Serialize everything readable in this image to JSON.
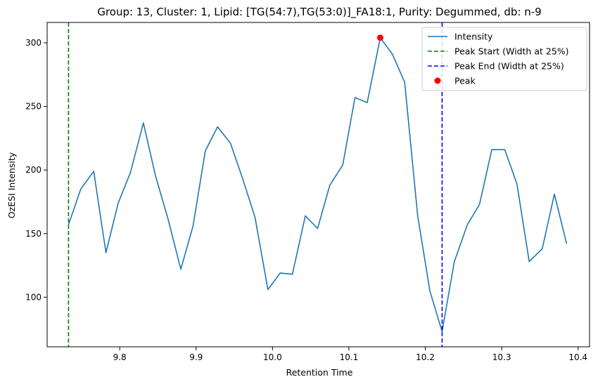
{
  "chart_data": {
    "type": "line",
    "title": "Group: 13, Cluster: 1, Lipid: [TG(54:7),TG(53:0)]_FA18:1, Purity: Degummed, db: n-9",
    "xlabel": "Retention Time",
    "ylabel": "OzESI Intensity",
    "xlim": [
      9.705,
      10.415
    ],
    "ylim": [
      61,
      316
    ],
    "x_ticks": [
      9.8,
      9.9,
      10.0,
      10.1,
      10.2,
      10.3,
      10.4
    ],
    "x_tick_labels": [
      "9.8",
      "9.9",
      "10.0",
      "10.1",
      "10.2",
      "10.3",
      "10.4"
    ],
    "y_ticks": [
      100,
      150,
      200,
      250,
      300
    ],
    "y_tick_labels": [
      "100",
      "150",
      "200",
      "250",
      "300"
    ],
    "grid": false,
    "legend_position": "top-right",
    "series": [
      {
        "name": "Intensity",
        "color": "#1f77b4",
        "style": "solid",
        "x": [
          9.733,
          9.749,
          9.766,
          9.782,
          9.798,
          9.814,
          9.831,
          9.847,
          9.863,
          9.88,
          9.896,
          9.912,
          9.928,
          9.945,
          9.961,
          9.977,
          9.994,
          10.01,
          10.026,
          10.043,
          10.059,
          10.075,
          10.092,
          10.108,
          10.124,
          10.141,
          10.157,
          10.173,
          10.19,
          10.206,
          10.222,
          10.238,
          10.255,
          10.271,
          10.287,
          10.304,
          10.32,
          10.336,
          10.353,
          10.369,
          10.385
        ],
        "y": [
          157,
          185,
          199,
          135,
          174,
          198,
          237,
          195,
          162,
          122,
          156,
          215,
          234,
          221,
          193,
          163,
          106,
          119,
          118,
          164,
          154,
          188,
          204,
          257,
          253,
          304,
          291,
          269,
          164,
          105,
          73,
          128,
          157,
          173,
          216,
          216,
          189,
          128,
          138,
          181,
          142
        ]
      },
      {
        "name": "Peak Start (Width at 25%)",
        "color": "#008000",
        "style": "dashed-vertical",
        "x_value": 9.733
      },
      {
        "name": "Peak End (Width at 25%)",
        "color": "#0000ff",
        "style": "dashed-vertical",
        "x_value": 10.222
      },
      {
        "name": "Peak",
        "color": "#ff0000",
        "style": "marker",
        "x_value": 10.141,
        "y_value": 304
      }
    ]
  }
}
